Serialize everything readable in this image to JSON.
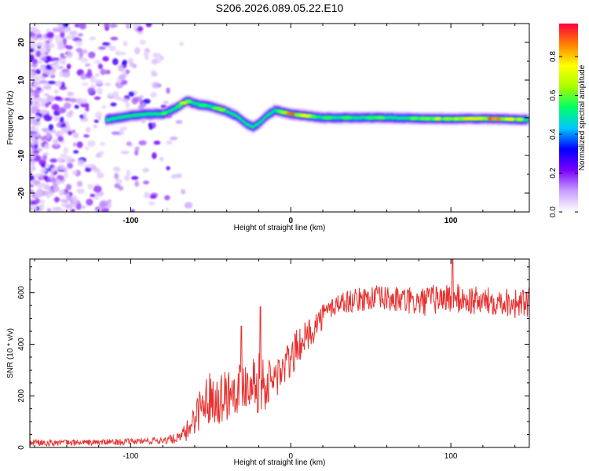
{
  "title": "S206.2026.089.05.22.E10",
  "chart_data": [
    {
      "type": "heatmap",
      "xlabel": "Height of straight line (km)",
      "ylabel": "Frequency (Hz)",
      "xlim": [
        -163,
        149
      ],
      "ylim": [
        -25,
        25
      ],
      "xticks": [
        "-100",
        "0",
        "100"
      ],
      "xtick_values": [
        -100,
        0,
        100
      ],
      "yticks": [
        "20",
        "10",
        "0",
        "-10",
        "-20"
      ],
      "ytick_values": [
        20,
        10,
        0,
        -10,
        -20
      ],
      "colorbar": {
        "label": "Normalized spectral amplitude",
        "range": [
          0,
          0.97
        ],
        "ticks": [
          "0.0",
          "0.2",
          "0.4",
          "0.6",
          "0.8"
        ],
        "tick_values": [
          0.0,
          0.2,
          0.4,
          0.6,
          0.8
        ],
        "colors": [
          "#ffffff",
          "#c9a0ff",
          "#7a00ff",
          "#0000ff",
          "#00c8ff",
          "#00ff66",
          "#aaff00",
          "#ffff00",
          "#ff8000",
          "#ff0040"
        ]
      },
      "ridge": {
        "x": [
          -115,
          -100,
          -90,
          -80,
          -72,
          -65,
          -58,
          -50,
          -42,
          -34,
          -28,
          -24,
          -20,
          -15,
          -10,
          -5,
          0,
          10,
          20,
          40,
          60,
          80,
          100,
          120,
          148
        ],
        "y": [
          -0.5,
          0.5,
          1.0,
          1.0,
          2.5,
          4.5,
          3.5,
          3.0,
          2.0,
          0.5,
          -1.5,
          -2.5,
          -1.5,
          0.5,
          2.0,
          1.5,
          1.0,
          0.5,
          0.0,
          0.0,
          0.0,
          -0.2,
          -0.3,
          -0.2,
          -0.5
        ],
        "amplitude": [
          0.3,
          0.4,
          0.5,
          0.55,
          0.6,
          0.65,
          0.6,
          0.55,
          0.55,
          0.45,
          0.35,
          0.3,
          0.35,
          0.45,
          0.55,
          0.6,
          0.85,
          0.7,
          0.55,
          0.55,
          0.55,
          0.6,
          0.65,
          0.9,
          0.6
        ]
      }
    },
    {
      "type": "line",
      "xlabel": "Height of straight line (km)",
      "ylabel": "SNR (10 * v/v)",
      "xlim": [
        -163,
        149
      ],
      "ylim": [
        0,
        730
      ],
      "xticks": [
        "-100",
        "0",
        "100"
      ],
      "xtick_values": [
        -100,
        0,
        100
      ],
      "yticks": [
        "0",
        "200",
        "400",
        "600"
      ],
      "ytick_values": [
        0,
        200,
        400,
        600
      ],
      "color": "#e8302e",
      "series": [
        {
          "name": "SNR",
          "x": [
            -163,
            -140,
            -120,
            -100,
            -80,
            -70,
            -65,
            -60,
            -55,
            -50,
            -45,
            -40,
            -35,
            -30,
            -25,
            -20,
            -15,
            -10,
            -5,
            0,
            5,
            10,
            15,
            20,
            25,
            30,
            40,
            50,
            60,
            70,
            80,
            90,
            100,
            110,
            120,
            130,
            140,
            149
          ],
          "values": [
            20,
            18,
            20,
            22,
            28,
            35,
            60,
            120,
            170,
            200,
            190,
            210,
            230,
            240,
            270,
            250,
            240,
            270,
            300,
            340,
            400,
            430,
            470,
            510,
            540,
            560,
            570,
            580,
            575,
            570,
            560,
            575,
            580,
            570,
            565,
            570,
            560,
            555
          ],
          "noise_amp": [
            15,
            12,
            12,
            12,
            15,
            20,
            40,
            70,
            90,
            100,
            100,
            110,
            100,
            100,
            110,
            120,
            100,
            90,
            80,
            80,
            70,
            60,
            60,
            50,
            45,
            45,
            45,
            50,
            50,
            55,
            55,
            60,
            60,
            60,
            55,
            55,
            60,
            55
          ],
          "spikes": [
            [
              -19,
              545
            ],
            [
              -31,
              470
            ],
            [
              101,
              735
            ],
            [
              149,
              620
            ]
          ]
        }
      ]
    }
  ]
}
